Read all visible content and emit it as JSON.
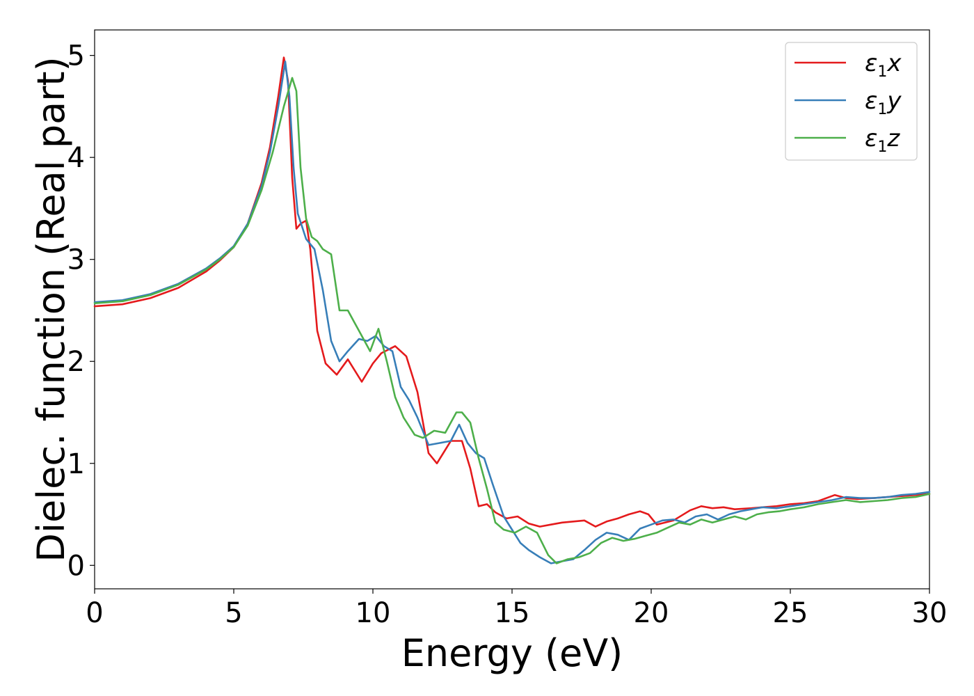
{
  "chart_data": {
    "type": "line",
    "title": "",
    "xlabel": "Energy (eV)",
    "ylabel": "Dielec. function (Real part)",
    "xlim": [
      0,
      30
    ],
    "ylim": [
      -0.23,
      5.25
    ],
    "xticks": [
      0,
      5,
      10,
      15,
      20,
      25,
      30
    ],
    "yticks": [
      0,
      1,
      2,
      3,
      4,
      5
    ],
    "grid": false,
    "legend": {
      "position": "top-right"
    },
    "series": [
      {
        "name": "ε1x",
        "label_symbol": "ε",
        "label_sub": "1",
        "label_var": "x",
        "color": "#e41a1c",
        "x": [
          0,
          1,
          2,
          3,
          4,
          4.5,
          5,
          5.5,
          6,
          6.3,
          6.6,
          6.8,
          6.95,
          7.1,
          7.25,
          7.4,
          7.6,
          7.75,
          8,
          8.3,
          8.7,
          9.1,
          9.6,
          10,
          10.3,
          10.8,
          11.2,
          11.6,
          12,
          12.3,
          12.8,
          13.2,
          13.5,
          13.8,
          14.1,
          14.4,
          14.8,
          15.2,
          15.6,
          16,
          16.4,
          16.8,
          17.2,
          17.6,
          18,
          18.4,
          18.8,
          19.2,
          19.6,
          19.9,
          20.2,
          20.8,
          21.4,
          21.8,
          22.2,
          22.6,
          23,
          23.6,
          24,
          24.5,
          25,
          25.5,
          26,
          26.6,
          27,
          27.4,
          28,
          28.5,
          29,
          29.5,
          30
        ],
        "y": [
          2.54,
          2.56,
          2.62,
          2.72,
          2.88,
          2.99,
          3.12,
          3.35,
          3.75,
          4.1,
          4.6,
          4.98,
          4.75,
          3.8,
          3.3,
          3.35,
          3.38,
          3.1,
          2.3,
          1.98,
          1.87,
          2.02,
          1.8,
          1.98,
          2.08,
          2.15,
          2.05,
          1.7,
          1.1,
          1.0,
          1.22,
          1.22,
          0.95,
          0.58,
          0.6,
          0.52,
          0.46,
          0.48,
          0.41,
          0.38,
          0.4,
          0.42,
          0.43,
          0.44,
          0.38,
          0.43,
          0.46,
          0.5,
          0.53,
          0.5,
          0.4,
          0.44,
          0.54,
          0.58,
          0.56,
          0.57,
          0.55,
          0.56,
          0.57,
          0.58,
          0.6,
          0.61,
          0.63,
          0.69,
          0.66,
          0.65,
          0.66,
          0.67,
          0.68,
          0.69,
          0.7
        ]
      },
      {
        "name": "ε1y",
        "label_symbol": "ε",
        "label_sub": "1",
        "label_var": "y",
        "color": "#377eb8",
        "x": [
          0,
          1,
          2,
          3,
          4,
          4.5,
          5,
          5.5,
          6,
          6.3,
          6.6,
          6.85,
          7.0,
          7.15,
          7.3,
          7.6,
          7.9,
          8.2,
          8.5,
          8.8,
          9.1,
          9.5,
          9.8,
          10.1,
          10.4,
          10.7,
          11.0,
          11.3,
          11.6,
          12.0,
          12.4,
          12.8,
          13.1,
          13.4,
          13.7,
          14.0,
          14.3,
          14.7,
          15.0,
          15.3,
          15.6,
          16.0,
          16.4,
          16.8,
          17.2,
          17.6,
          18.0,
          18.4,
          18.8,
          19.2,
          19.6,
          20.0,
          20.4,
          20.8,
          21.2,
          21.6,
          22.0,
          22.4,
          22.8,
          23.2,
          23.6,
          24.0,
          24.5,
          25.0,
          25.5,
          26.0,
          26.5,
          27.0,
          27.5,
          28.0,
          28.5,
          29.0,
          29.5,
          30.0
        ],
        "y": [
          2.58,
          2.6,
          2.66,
          2.76,
          2.91,
          3.01,
          3.13,
          3.35,
          3.72,
          4.05,
          4.5,
          4.94,
          4.6,
          3.9,
          3.45,
          3.2,
          3.1,
          2.7,
          2.2,
          2.0,
          2.1,
          2.22,
          2.2,
          2.25,
          2.15,
          2.1,
          1.75,
          1.62,
          1.45,
          1.18,
          1.2,
          1.22,
          1.38,
          1.2,
          1.1,
          1.05,
          0.8,
          0.48,
          0.35,
          0.22,
          0.15,
          0.08,
          0.02,
          0.04,
          0.06,
          0.15,
          0.25,
          0.32,
          0.3,
          0.25,
          0.36,
          0.4,
          0.44,
          0.45,
          0.42,
          0.48,
          0.5,
          0.45,
          0.5,
          0.53,
          0.55,
          0.57,
          0.56,
          0.58,
          0.6,
          0.62,
          0.64,
          0.67,
          0.66,
          0.66,
          0.67,
          0.69,
          0.7,
          0.72
        ]
      },
      {
        "name": "ε1z",
        "label_symbol": "ε",
        "label_sub": "1",
        "label_var": "z",
        "color": "#4daf4a",
        "x": [
          0,
          1,
          2,
          3,
          4,
          4.5,
          5,
          5.5,
          6,
          6.4,
          6.8,
          7.1,
          7.25,
          7.4,
          7.6,
          7.8,
          8.0,
          8.2,
          8.5,
          8.8,
          9.1,
          9.5,
          9.9,
          10.2,
          10.5,
          10.8,
          11.1,
          11.5,
          11.8,
          12.2,
          12.6,
          13.0,
          13.2,
          13.5,
          13.8,
          14.1,
          14.4,
          14.7,
          15.1,
          15.5,
          15.9,
          16.3,
          16.6,
          17.0,
          17.4,
          17.8,
          18.2,
          18.6,
          19.0,
          19.4,
          19.8,
          20.2,
          20.6,
          21.0,
          21.4,
          21.8,
          22.2,
          22.6,
          23.0,
          23.4,
          23.8,
          24.2,
          24.6,
          25.0,
          25.5,
          26.0,
          26.5,
          27.0,
          27.5,
          28.0,
          28.5,
          29.0,
          29.5,
          30.0
        ],
        "y": [
          2.57,
          2.59,
          2.65,
          2.75,
          2.9,
          3.0,
          3.12,
          3.33,
          3.68,
          4.05,
          4.5,
          4.78,
          4.65,
          3.9,
          3.4,
          3.22,
          3.18,
          3.1,
          3.05,
          2.5,
          2.5,
          2.3,
          2.1,
          2.32,
          2.0,
          1.65,
          1.45,
          1.28,
          1.25,
          1.32,
          1.3,
          1.5,
          1.5,
          1.4,
          1.05,
          0.75,
          0.42,
          0.35,
          0.32,
          0.38,
          0.32,
          0.1,
          0.02,
          0.06,
          0.08,
          0.12,
          0.22,
          0.27,
          0.24,
          0.26,
          0.29,
          0.32,
          0.37,
          0.42,
          0.4,
          0.45,
          0.42,
          0.45,
          0.48,
          0.45,
          0.5,
          0.52,
          0.53,
          0.55,
          0.57,
          0.6,
          0.62,
          0.64,
          0.62,
          0.63,
          0.64,
          0.66,
          0.67,
          0.7
        ]
      }
    ]
  }
}
